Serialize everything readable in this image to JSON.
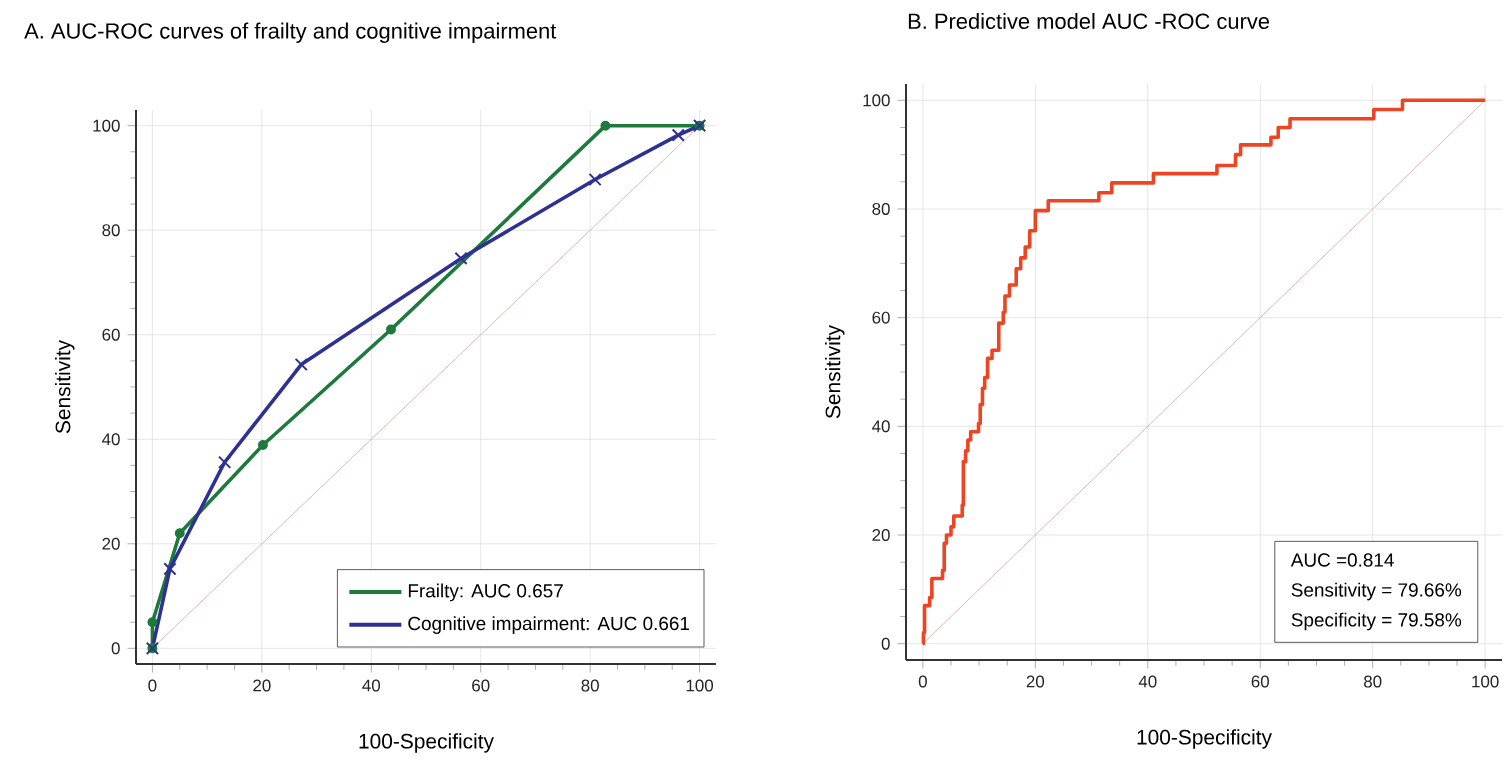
{
  "chart_data": [
    {
      "type": "line",
      "title": "A. AUC-ROC curves of  frailty and cognitive impairment",
      "xlabel": "100-Specificity",
      "ylabel": "Sensitivity",
      "xlim": [
        -3,
        103
      ],
      "ylim": [
        -3,
        103
      ],
      "xticks": [
        0,
        20,
        40,
        60,
        80,
        100
      ],
      "yticks": [
        0,
        20,
        40,
        60,
        80,
        100
      ],
      "grid": true,
      "legend": "bottom right",
      "series": [
        {
          "name": "Frailty:  AUC 0.657",
          "color": "#1e7a3c",
          "marker": "circle",
          "x": [
            0,
            0,
            5,
            20.2,
            43.6,
            82.8,
            100
          ],
          "values": [
            0,
            5,
            22,
            38.9,
            61,
            100,
            100
          ]
        },
        {
          "name": "Cognitive impairment:  AUC 0.661",
          "color": "#2e3192",
          "marker": "cross",
          "x": [
            0,
            3.2,
            13.2,
            27.2,
            56.4,
            80.9,
            96.1,
            100
          ],
          "values": [
            0,
            15.2,
            35.6,
            54.3,
            74.6,
            89.7,
            98.2,
            100
          ]
        },
        {
          "color": "#d9a5a5",
          "marker": "none",
          "x": [
            0,
            100
          ],
          "values": [
            0,
            100
          ]
        }
      ]
    },
    {
      "type": "step",
      "title": "B. Predictive model AUC -ROC curve",
      "xlabel": "100-Specificity",
      "ylabel": "Sensitivity",
      "xlim": [
        -3,
        103
      ],
      "ylim": [
        -3,
        103
      ],
      "xticks": [
        0,
        20,
        40,
        60,
        80,
        100
      ],
      "yticks": [
        0,
        20,
        40,
        60,
        80,
        100
      ],
      "grid": true,
      "annotations": [
        "AUC =0.814",
        "Sensitivity = 79.66%",
        "Specificity = 79.58%"
      ],
      "series": [
        {
          "color": "#d9a5a5",
          "type": "line",
          "marker": "none",
          "x": [
            0,
            100
          ],
          "values": [
            0,
            100
          ]
        },
        {
          "color": "#ee4422",
          "marker": "none",
          "x": [
            0,
            0.1,
            0.3,
            1.2,
            1.6,
            3.5,
            3.8,
            4.2,
            5,
            5.5,
            7,
            7.2,
            7.6,
            8,
            8.5,
            9.9,
            10.2,
            10.6,
            11,
            11.5,
            12.3,
            13.5,
            14.3,
            14.6,
            15.4,
            16.6,
            17.4,
            18.2,
            19,
            20,
            22.3,
            31.3,
            33.6,
            41,
            52.3,
            55.6,
            56.5,
            61.9,
            63.2,
            65.3,
            80.2,
            85.3,
            100
          ],
          "values": [
            0,
            2,
            7,
            8.5,
            12,
            13.5,
            18.5,
            20,
            21.5,
            23.5,
            25.5,
            33.5,
            35.5,
            37.5,
            39,
            40.5,
            44,
            47,
            49,
            52.5,
            54,
            59,
            61,
            64,
            66,
            69,
            71,
            73,
            76,
            79.7,
            81.5,
            83,
            84.8,
            86.5,
            88,
            90,
            91.8,
            93.2,
            95,
            96.6,
            98.3,
            100,
            100
          ]
        }
      ]
    }
  ]
}
